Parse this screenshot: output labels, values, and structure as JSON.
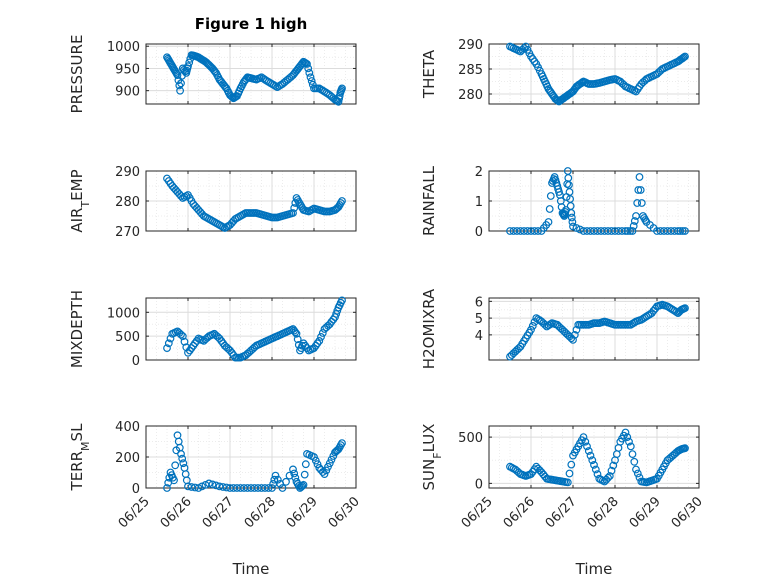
{
  "colors": {
    "marker": "#0072BD",
    "axis": "#262626",
    "grid": "#dcdcdc",
    "minor_grid": "#ececec"
  },
  "chart_data": [
    {
      "type": "scatter",
      "title": "Figure 1 high",
      "ylabel": "PRESSURE",
      "ylim": [
        870,
        1005
      ],
      "yticks": [
        "900",
        "950",
        "1000"
      ],
      "yticks_val": [
        900,
        950,
        1000
      ],
      "x": [
        "06/25 12:00",
        "06/25 13:30",
        "06/25 15:00",
        "06/25 16:30",
        "06/25 18:00",
        "06/25 19:30",
        "06/25 21:00",
        "06/25 23:00",
        "06/26 00:00",
        "06/26 02:00",
        "06/26 04:00",
        "06/26 06:00",
        "06/26 08:00",
        "06/26 10:00",
        "06/26 12:00",
        "06/26 14:00",
        "06/26 16:00",
        "06/26 18:00",
        "06/26 20:00",
        "06/26 22:00",
        "06/27 00:00",
        "06/27 02:00",
        "06/27 04:00",
        "06/27 06:00",
        "06/27 08:00",
        "06/27 10:00",
        "06/27 12:00",
        "06/27 15:00",
        "06/27 18:00",
        "06/27 21:00",
        "06/28 00:00",
        "06/28 03:00",
        "06/28 06:00",
        "06/28 09:00",
        "06/28 12:00",
        "06/28 14:00",
        "06/28 16:00",
        "06/28 18:00",
        "06/28 20:00",
        "06/28 22:00",
        "06/29 00:00",
        "06/29 03:00",
        "06/29 06:00",
        "06/29 09:00",
        "06/29 12:00",
        "06/29 14:00",
        "06/29 15:00",
        "06/29 16:00"
      ],
      "y": [
        975,
        965,
        955,
        945,
        935,
        900,
        950,
        940,
        955,
        980,
        978,
        975,
        970,
        965,
        958,
        950,
        940,
        925,
        915,
        905,
        890,
        883,
        888,
        905,
        920,
        930,
        928,
        925,
        930,
        922,
        915,
        908,
        915,
        925,
        935,
        945,
        955,
        965,
        960,
        930,
        905,
        905,
        898,
        890,
        880,
        875,
        895,
        905
      ]
    },
    {
      "type": "scatter",
      "ylabel": "THETA",
      "ylim": [
        278,
        290
      ],
      "yticks": [
        "280",
        "285",
        "290"
      ],
      "yticks_val": [
        280,
        285,
        290
      ],
      "x": [
        "06/25 12:00",
        "06/25 15:00",
        "06/25 18:00",
        "06/25 21:00",
        "06/26 00:00",
        "06/26 03:00",
        "06/26 06:00",
        "06/26 08:00",
        "06/26 10:00",
        "06/26 12:00",
        "06/26 14:00",
        "06/26 16:00",
        "06/26 18:00",
        "06/26 20:00",
        "06/26 22:00",
        "06/27 00:00",
        "06/27 02:00",
        "06/27 04:00",
        "06/27 06:00",
        "06/27 09:00",
        "06/27 12:00",
        "06/27 15:00",
        "06/27 18:00",
        "06/27 21:00",
        "06/28 00:00",
        "06/28 03:00",
        "06/28 06:00",
        "06/28 09:00",
        "06/28 12:00",
        "06/28 15:00",
        "06/28 18:00",
        "06/28 21:00",
        "06/29 00:00",
        "06/29 03:00",
        "06/29 06:00",
        "06/29 09:00",
        "06/29 12:00",
        "06/29 14:00",
        "06/29 16:00"
      ],
      "y": [
        289.5,
        289,
        288.5,
        289.5,
        287.5,
        286,
        284,
        282.5,
        281,
        280,
        279,
        278.5,
        279,
        279.5,
        280,
        280.5,
        281.5,
        282,
        282.5,
        282,
        282,
        282.2,
        282.5,
        282.8,
        283,
        282.5,
        281.5,
        281,
        280.5,
        282,
        283,
        283.5,
        284,
        285,
        285.5,
        286,
        286.5,
        287,
        287.5
      ]
    },
    {
      "type": "scatter",
      "ylabel": "AIR_TEMP",
      "ylim": [
        270,
        290
      ],
      "yticks": [
        "270",
        "280",
        "290"
      ],
      "yticks_val": [
        270,
        280,
        290
      ],
      "x": [
        "06/25 12:00",
        "06/25 15:00",
        "06/25 18:00",
        "06/25 21:00",
        "06/26 00:00",
        "06/26 03:00",
        "06/26 06:00",
        "06/26 09:00",
        "06/26 12:00",
        "06/26 15:00",
        "06/26 18:00",
        "06/26 21:00",
        "06/27 00:00",
        "06/27 03:00",
        "06/27 06:00",
        "06/27 09:00",
        "06/27 12:00",
        "06/27 15:00",
        "06/27 18:00",
        "06/27 21:00",
        "06/28 00:00",
        "06/28 03:00",
        "06/28 06:00",
        "06/28 09:00",
        "06/28 12:00",
        "06/28 14:00",
        "06/28 16:00",
        "06/28 18:00",
        "06/28 21:00",
        "06/29 00:00",
        "06/29 03:00",
        "06/29 06:00",
        "06/29 09:00",
        "06/29 12:00",
        "06/29 14:00",
        "06/29 16:00"
      ],
      "y": [
        287.5,
        285,
        283,
        281,
        282,
        279,
        277,
        275,
        274,
        273,
        272,
        271,
        272,
        274,
        275,
        276,
        276,
        276,
        275.5,
        275,
        274.5,
        274.5,
        275,
        275.5,
        276,
        281,
        279,
        277,
        276.5,
        277.5,
        277,
        276.5,
        276.5,
        277,
        278,
        280
      ]
    },
    {
      "type": "scatter",
      "ylabel": "RAINFALL",
      "ylim": [
        0,
        2
      ],
      "yticks": [
        "0",
        "1",
        "2"
      ],
      "yticks_val": [
        0,
        1,
        2
      ],
      "x": [
        "06/25 12:00",
        "06/25 18:00",
        "06/26 00:00",
        "06/26 06:00",
        "06/26 10:00",
        "06/26 12:00",
        "06/26 13:30",
        "06/26 15:00",
        "06/26 16:30",
        "06/26 18:00",
        "06/26 19:00",
        "06/26 20:00",
        "06/26 21:00",
        "06/26 22:00",
        "06/26 23:00",
        "06/27 00:00",
        "06/27 06:00",
        "06/27 12:00",
        "06/27 18:00",
        "06/28 00:00",
        "06/28 06:00",
        "06/28 10:00",
        "06/28 12:00",
        "06/28 14:00",
        "06/28 16:00",
        "06/28 18:00",
        "06/29 00:00",
        "06/29 06:00",
        "06/29 12:00",
        "06/29 16:00"
      ],
      "y": [
        0,
        0,
        0,
        0,
        0.3,
        1.6,
        1.8,
        1.5,
        1.2,
        0.6,
        0.5,
        0.7,
        2.0,
        1.3,
        0.6,
        0.15,
        0,
        0,
        0,
        0,
        0,
        0,
        0.5,
        1.8,
        0.5,
        0.3,
        0,
        0,
        0,
        0
      ]
    },
    {
      "type": "scatter",
      "ylabel": "MIXDEPTH",
      "ylim": [
        0,
        1300
      ],
      "yticks": [
        "0",
        "500",
        "1000"
      ],
      "yticks_val": [
        0,
        500,
        1000
      ],
      "x": [
        "06/25 12:00",
        "06/25 15:00",
        "06/25 18:00",
        "06/25 21:00",
        "06/26 00:00",
        "06/26 03:00",
        "06/26 06:00",
        "06/26 09:00",
        "06/26 12:00",
        "06/26 15:00",
        "06/26 18:00",
        "06/26 21:00",
        "06/27 00:00",
        "06/27 03:00",
        "06/27 06:00",
        "06/27 09:00",
        "06/27 12:00",
        "06/27 15:00",
        "06/27 18:00",
        "06/27 21:00",
        "06/28 00:00",
        "06/28 03:00",
        "06/28 06:00",
        "06/28 09:00",
        "06/28 12:00",
        "06/28 14:00",
        "06/28 16:00",
        "06/28 18:00",
        "06/28 21:00",
        "06/29 00:00",
        "06/29 03:00",
        "06/29 06:00",
        "06/29 09:00",
        "06/29 12:00",
        "06/29 14:00",
        "06/29 16:00"
      ],
      "y": [
        250,
        550,
        600,
        500,
        150,
        300,
        450,
        400,
        500,
        550,
        450,
        300,
        200,
        50,
        50,
        100,
        200,
        300,
        350,
        400,
        450,
        500,
        550,
        600,
        650,
        550,
        200,
        350,
        200,
        250,
        400,
        650,
        750,
        900,
        1100,
        1250
      ]
    },
    {
      "type": "scatter",
      "ylabel": "H2OMIXRA",
      "ylim": [
        2.5,
        6.2
      ],
      "yticks": [
        "4",
        "5",
        "6"
      ],
      "yticks_val": [
        4,
        5,
        6
      ],
      "x": [
        "06/25 12:00",
        "06/25 15:00",
        "06/25 18:00",
        "06/25 21:00",
        "06/26 00:00",
        "06/26 03:00",
        "06/26 06:00",
        "06/26 09:00",
        "06/26 12:00",
        "06/26 15:00",
        "06/26 18:00",
        "06/26 21:00",
        "06/27 00:00",
        "06/27 03:00",
        "06/27 06:00",
        "06/27 09:00",
        "06/27 12:00",
        "06/27 15:00",
        "06/27 18:00",
        "06/27 21:00",
        "06/28 00:00",
        "06/28 03:00",
        "06/28 06:00",
        "06/28 09:00",
        "06/28 12:00",
        "06/28 15:00",
        "06/28 18:00",
        "06/28 21:00",
        "06/29 00:00",
        "06/29 03:00",
        "06/29 06:00",
        "06/29 09:00",
        "06/29 12:00",
        "06/29 14:00",
        "06/29 16:00"
      ],
      "y": [
        2.7,
        3,
        3.3,
        3.8,
        4.3,
        5,
        4.8,
        4.5,
        4.7,
        4.6,
        4.3,
        4,
        3.7,
        4.6,
        4.6,
        4.6,
        4.7,
        4.7,
        4.8,
        4.7,
        4.6,
        4.6,
        4.6,
        4.6,
        4.8,
        4.9,
        5.1,
        5.3,
        5.7,
        5.8,
        5.7,
        5.5,
        5.3,
        5.5,
        5.6
      ]
    },
    {
      "type": "scatter",
      "ylabel": "TERR_MSL",
      "ylim": [
        0,
        400
      ],
      "yticks": [
        "0",
        "200",
        "400"
      ],
      "yticks_val": [
        0,
        200,
        400
      ],
      "x": [
        "06/25 12:00",
        "06/25 14:00",
        "06/25 16:00",
        "06/25 18:00",
        "06/25 20:00",
        "06/25 22:00",
        "06/26 00:00",
        "06/26 06:00",
        "06/26 12:00",
        "06/26 18:00",
        "06/27 00:00",
        "06/27 06:00",
        "06/27 12:00",
        "06/27 18:00",
        "06/28 00:00",
        "06/28 02:00",
        "06/28 06:00",
        "06/28 12:00",
        "06/28 14:00",
        "06/28 16:00",
        "06/28 18:00",
        "06/28 20:00",
        "06/29 00:00",
        "06/29 03:00",
        "06/29 06:00",
        "06/29 09:00",
        "06/29 12:00",
        "06/29 14:00",
        "06/29 16:00"
      ],
      "y": [
        0,
        100,
        50,
        340,
        220,
        130,
        10,
        0,
        30,
        10,
        0,
        0,
        0,
        0,
        0,
        80,
        0,
        120,
        40,
        0,
        20,
        220,
        200,
        130,
        90,
        160,
        230,
        250,
        290
      ]
    },
    {
      "type": "scatter",
      "ylabel": "SUN_FLUX",
      "ylim": [
        -50,
        620
      ],
      "yticks": [
        "0",
        "500"
      ],
      "yticks_val": [
        0,
        500
      ],
      "x": [
        "06/25 12:00",
        "06/25 15:00",
        "06/25 18:00",
        "06/25 21:00",
        "06/26 00:00",
        "06/26 03:00",
        "06/26 06:00",
        "06/26 09:00",
        "06/26 12:00",
        "06/26 15:00",
        "06/26 18:00",
        "06/26 21:00",
        "06/27 00:00",
        "06/27 03:00",
        "06/27 06:00",
        "06/27 09:00",
        "06/27 12:00",
        "06/27 15:00",
        "06/27 18:00",
        "06/27 21:00",
        "06/28 00:00",
        "06/28 03:00",
        "06/28 06:00",
        "06/28 09:00",
        "06/28 12:00",
        "06/28 15:00",
        "06/28 18:00",
        "06/28 21:00",
        "06/29 00:00",
        "06/29 03:00",
        "06/29 06:00",
        "06/29 09:00",
        "06/29 12:00",
        "06/29 14:00",
        "06/29 16:00"
      ],
      "y": [
        180,
        150,
        100,
        80,
        100,
        180,
        120,
        50,
        40,
        30,
        20,
        10,
        300,
        400,
        500,
        350,
        200,
        50,
        20,
        80,
        250,
        450,
        550,
        400,
        150,
        20,
        10,
        30,
        50,
        150,
        250,
        300,
        350,
        370,
        380
      ]
    }
  ],
  "x_axis": {
    "range_days": [
      0,
      5
    ],
    "ticks": [
      "06/25",
      "06/26",
      "06/27",
      "06/28",
      "06/29",
      "06/30"
    ],
    "label": "Time"
  }
}
